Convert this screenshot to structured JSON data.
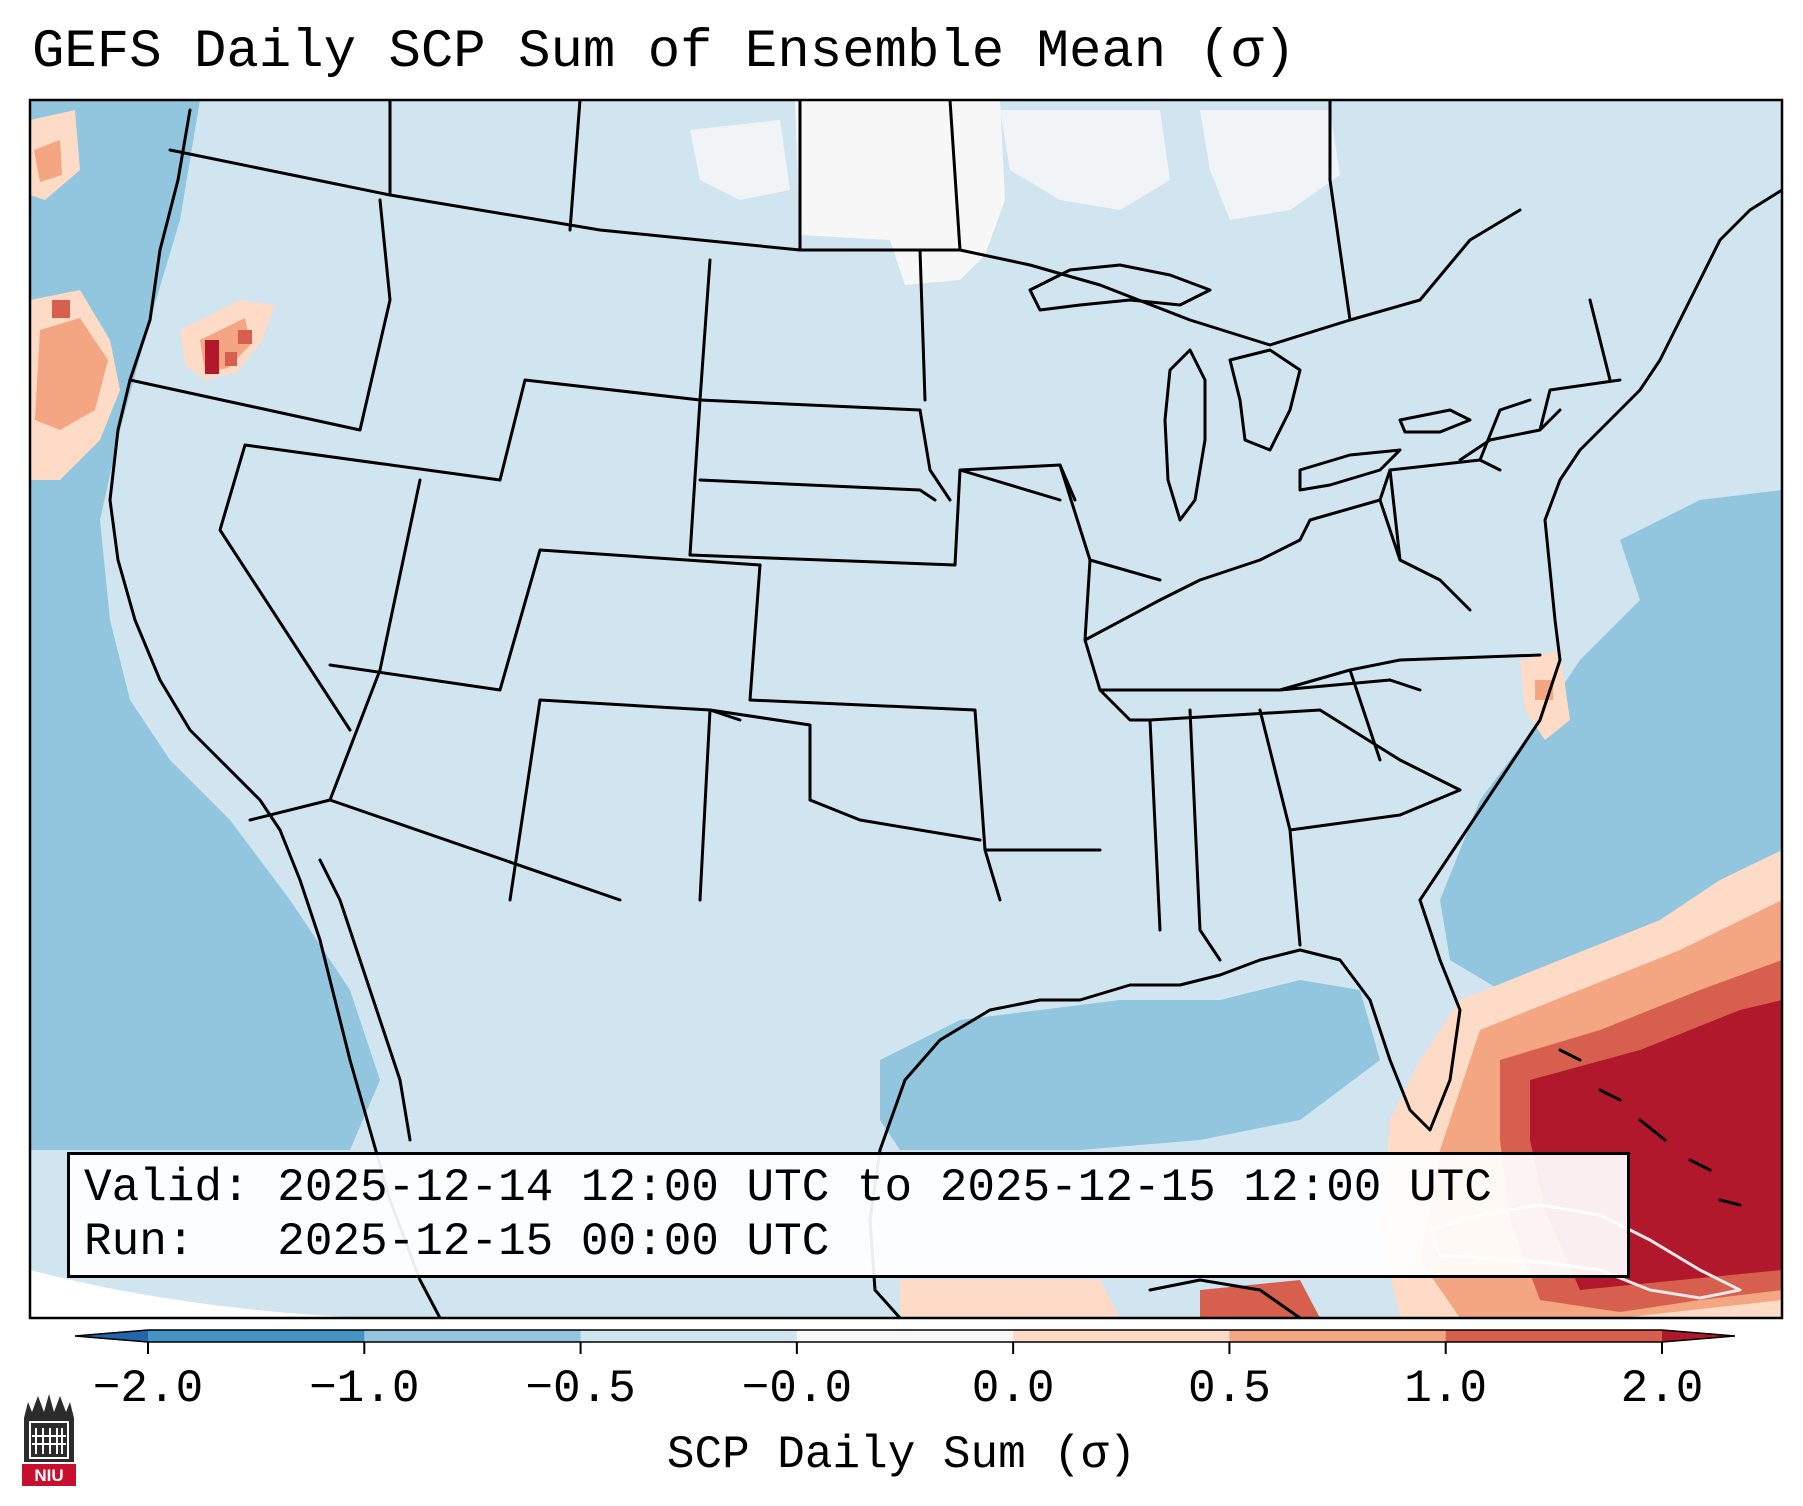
{
  "title": "GEFS Daily SCP Sum of Ensemble Mean (σ)",
  "info_box": {
    "valid_line": "Valid: 2025-12-14 12:00 UTC to 2025-12-15 12:00 UTC",
    "run_line": "Run:   2025-12-15 00:00 UTC"
  },
  "colorbar": {
    "label": "SCP Daily Sum (σ)",
    "tick_labels": [
      "−2.0",
      "−1.0",
      "−0.5",
      "−0.0",
      "0.0",
      "0.5",
      "1.0",
      "2.0"
    ],
    "bins": [
      {
        "from": -2.0,
        "to": -1.0,
        "color": "#4393c3"
      },
      {
        "from": -1.0,
        "to": -0.5,
        "color": "#92c5de"
      },
      {
        "from": -0.5,
        "to": -0.0,
        "color": "#d1e5f0"
      },
      {
        "from": -0.0,
        "to": 0.0,
        "color": "#f7f7f7"
      },
      {
        "from": 0.0,
        "to": 0.5,
        "color": "#fddbc7"
      },
      {
        "from": 0.5,
        "to": 1.0,
        "color": "#f4a582"
      },
      {
        "from": 1.0,
        "to": 2.0,
        "color": "#d6604d"
      }
    ],
    "under_color": "#2166ac",
    "over_color": "#b2182b"
  },
  "logo": {
    "text": "NIU",
    "icon": "niu-building-icon"
  },
  "colors": {
    "background_land": "#d1e5f0",
    "ocean_negative": "#92c5de",
    "positive_strong": "#b2182b",
    "outline": "#000000"
  }
}
